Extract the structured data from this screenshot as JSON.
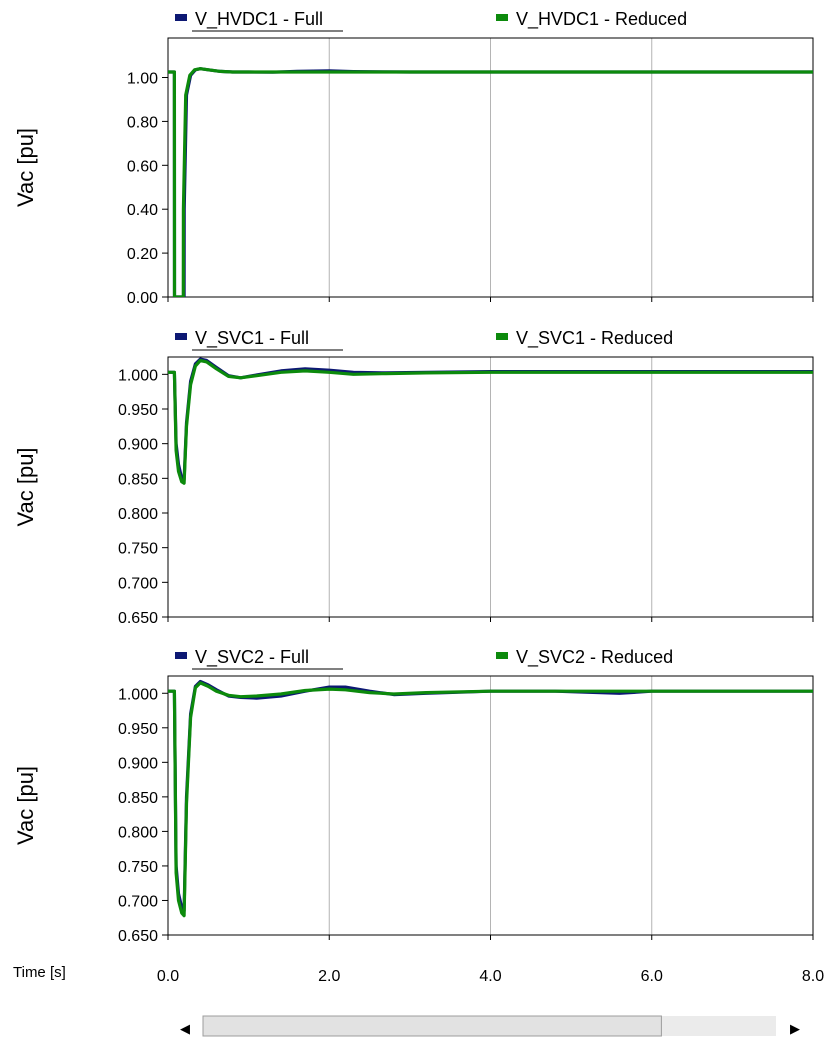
{
  "x_axis": {
    "title": "Time [s]",
    "range": [
      0,
      8
    ],
    "ticks": [
      0,
      2,
      4,
      6,
      8
    ],
    "tick_labels": [
      "0.0",
      "2.0",
      "4.0",
      "6.0",
      "8.0"
    ]
  },
  "scrollbar": {
    "left_arrow": "◀",
    "right_arrow": "▶",
    "position": 0.0,
    "thumb_fraction": 0.8
  },
  "colors": {
    "full": "#0d1873",
    "reduced": "#0c8a0c",
    "grid": "#b4b4b4"
  },
  "chart_data": [
    {
      "type": "line",
      "ylabel": "Vac [pu]",
      "ylim": [
        0.0,
        1.18
      ],
      "yticks": [
        0.0,
        0.2,
        0.4,
        0.6,
        0.8,
        1.0
      ],
      "ytick_labels": [
        "0.00",
        "0.20",
        "0.40",
        "0.60",
        "0.80",
        "1.00"
      ],
      "grid": true,
      "legend_position": "top",
      "series": [
        {
          "name": "V_HVDC1 - Full",
          "x": [
            0,
            0.08,
            0.081,
            0.2,
            0.201,
            0.23,
            0.28,
            0.34,
            0.4,
            0.5,
            0.65,
            0.8,
            1.0,
            1.3,
            1.6,
            2.0,
            2.3,
            3.0,
            4.0,
            6.0,
            8.0
          ],
          "y": [
            1.025,
            1.025,
            0.0,
            0.0,
            0.4,
            0.92,
            1.01,
            1.035,
            1.04,
            1.035,
            1.028,
            1.025,
            1.025,
            1.024,
            1.028,
            1.03,
            1.027,
            1.025,
            1.025,
            1.025,
            1.025
          ]
        },
        {
          "name": "V_HVDC1 - Reduced",
          "x": [
            0,
            0.08,
            0.081,
            0.19,
            0.191,
            0.22,
            0.27,
            0.33,
            0.4,
            0.5,
            0.65,
            0.8,
            1.0,
            1.5,
            2.0,
            3.0,
            4.0,
            6.0,
            8.0
          ],
          "y": [
            1.025,
            1.025,
            0.0,
            0.0,
            0.4,
            0.92,
            1.01,
            1.035,
            1.04,
            1.035,
            1.028,
            1.025,
            1.025,
            1.025,
            1.025,
            1.025,
            1.025,
            1.025,
            1.025
          ]
        }
      ]
    },
    {
      "type": "line",
      "ylabel": "Vac [pu]",
      "ylim": [
        0.65,
        1.025
      ],
      "yticks": [
        0.65,
        0.7,
        0.75,
        0.8,
        0.85,
        0.9,
        0.95,
        1.0
      ],
      "ytick_labels": [
        "0.650",
        "0.700",
        "0.750",
        "0.800",
        "0.850",
        "0.900",
        "0.950",
        "1.000"
      ],
      "grid": true,
      "legend_position": "top",
      "series": [
        {
          "name": "V_SVC1 - Full",
          "x": [
            0,
            0.08,
            0.1,
            0.13,
            0.17,
            0.2,
            0.23,
            0.28,
            0.34,
            0.4,
            0.48,
            0.6,
            0.75,
            0.9,
            1.1,
            1.4,
            1.7,
            2.0,
            2.3,
            2.7,
            3.2,
            4.0,
            5.0,
            6.0,
            8.0
          ],
          "y": [
            1.003,
            1.003,
            0.9,
            0.87,
            0.85,
            0.848,
            0.93,
            0.99,
            1.015,
            1.022,
            1.02,
            1.01,
            0.998,
            0.995,
            0.999,
            1.005,
            1.008,
            1.006,
            1.003,
            1.002,
            1.003,
            1.004,
            1.004,
            1.004,
            1.004
          ]
        },
        {
          "name": "V_SVC1 - Reduced",
          "x": [
            0,
            0.08,
            0.1,
            0.13,
            0.17,
            0.2,
            0.23,
            0.28,
            0.34,
            0.4,
            0.48,
            0.6,
            0.75,
            0.9,
            1.1,
            1.4,
            1.7,
            2.0,
            2.3,
            2.7,
            3.2,
            4.0,
            5.0,
            6.0,
            8.0
          ],
          "y": [
            1.003,
            1.003,
            0.89,
            0.86,
            0.845,
            0.843,
            0.925,
            0.985,
            1.012,
            1.02,
            1.018,
            1.008,
            0.997,
            0.995,
            0.998,
            1.003,
            1.005,
            1.003,
            1.0,
            1.001,
            1.002,
            1.003,
            1.003,
            1.003,
            1.003
          ]
        }
      ]
    },
    {
      "type": "line",
      "ylabel": "Vac [pu]",
      "ylim": [
        0.65,
        1.025
      ],
      "yticks": [
        0.65,
        0.7,
        0.75,
        0.8,
        0.85,
        0.9,
        0.95,
        1.0
      ],
      "ytick_labels": [
        "0.650",
        "0.700",
        "0.750",
        "0.800",
        "0.850",
        "0.900",
        "0.950",
        "1.000"
      ],
      "grid": true,
      "legend_position": "top",
      "series": [
        {
          "name": "V_SVC2 - Full",
          "x": [
            0,
            0.08,
            0.1,
            0.13,
            0.17,
            0.2,
            0.23,
            0.28,
            0.34,
            0.4,
            0.5,
            0.6,
            0.75,
            0.9,
            1.1,
            1.4,
            1.7,
            2.0,
            2.2,
            2.5,
            2.8,
            3.2,
            4.0,
            4.8,
            5.6,
            6.0,
            8.0
          ],
          "y": [
            1.003,
            1.003,
            0.75,
            0.71,
            0.69,
            0.685,
            0.85,
            0.97,
            1.01,
            1.017,
            1.012,
            1.005,
            0.996,
            0.994,
            0.993,
            0.996,
            1.003,
            1.009,
            1.009,
            1.003,
            0.998,
            1.0,
            1.003,
            1.003,
            1.0,
            1.003,
            1.003
          ]
        },
        {
          "name": "V_SVC2 - Reduced",
          "x": [
            0,
            0.08,
            0.1,
            0.13,
            0.17,
            0.2,
            0.23,
            0.28,
            0.34,
            0.4,
            0.5,
            0.6,
            0.75,
            0.9,
            1.1,
            1.4,
            1.7,
            2.0,
            2.2,
            2.5,
            2.8,
            3.2,
            4.0,
            5.0,
            6.0,
            8.0
          ],
          "y": [
            1.003,
            1.003,
            0.74,
            0.7,
            0.682,
            0.678,
            0.84,
            0.965,
            1.008,
            1.015,
            1.01,
            1.003,
            0.997,
            0.995,
            0.996,
            0.999,
            1.004,
            1.006,
            1.005,
            1.001,
            0.999,
            1.001,
            1.003,
            1.003,
            1.003,
            1.003
          ]
        }
      ]
    }
  ]
}
